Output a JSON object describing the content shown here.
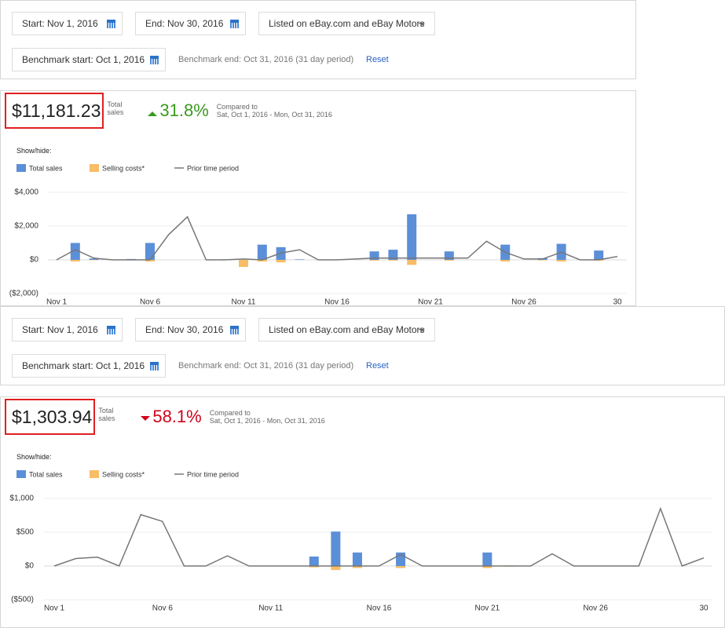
{
  "panels": [
    {
      "filters": {
        "start": "Start: Nov 1, 2016",
        "end": "End: Nov 30, 2016",
        "listing": "Listed on eBay.com and eBay Motors",
        "benchmark_start": "Benchmark start: Oct 1, 2016",
        "benchmark_end": "Benchmark end: Oct 31, 2016 (31 day period)",
        "reset": "Reset"
      },
      "summary": {
        "amount": "$11,181.23",
        "amount_label": "Total sales",
        "change": "31.8%",
        "direction": "up",
        "compared_label": "Compared to",
        "compared_range": "Sat, Oct 1, 2016 - Mon, Oct 31, 2016"
      },
      "show_hide": "Show/hide:"
    },
    {
      "filters": {
        "start": "Start: Nov 1, 2016",
        "end": "End: Nov 30, 2016",
        "listing": "Listed on eBay.com and eBay Motors",
        "benchmark_start": "Benchmark start: Oct 1, 2016",
        "benchmark_end": "Benchmark end: Oct 31, 2016 (31 day period)",
        "reset": "Reset"
      },
      "summary": {
        "amount": "$1,303.94",
        "amount_label": "Total sales",
        "change": "58.1%",
        "direction": "down",
        "compared_label": "Compared to",
        "compared_range": "Sat, Oct 1, 2016 - Mon, Oct 31, 2016"
      },
      "show_hide": "Show/hide:"
    }
  ],
  "chart_data": [
    {
      "type": "bar-line",
      "categories": [
        "Nov 1",
        null,
        null,
        null,
        null,
        "Nov 6",
        null,
        null,
        null,
        null,
        "Nov 11",
        null,
        null,
        null,
        null,
        "Nov 16",
        null,
        null,
        null,
        null,
        "Nov 21",
        null,
        null,
        null,
        null,
        "Nov 26",
        null,
        null,
        null,
        null,
        "30"
      ],
      "series": [
        {
          "name": "Total sales",
          "color": "#5b8fd8",
          "kind": "bar",
          "values": [
            0,
            1000,
            80,
            0,
            50,
            1000,
            0,
            0,
            0,
            30,
            0,
            900,
            750,
            30,
            0,
            0,
            0,
            500,
            600,
            2700,
            0,
            500,
            0,
            0,
            900,
            0,
            100,
            950,
            0,
            550,
            0
          ]
        },
        {
          "name": "Selling costs*",
          "color": "#f7bd67",
          "kind": "bar",
          "values": [
            0,
            -100,
            -20,
            0,
            0,
            -100,
            0,
            0,
            0,
            0,
            -420,
            -100,
            -150,
            0,
            0,
            0,
            0,
            -50,
            -50,
            -300,
            0,
            -50,
            0,
            0,
            -100,
            0,
            -30,
            -100,
            0,
            -50,
            0
          ]
        },
        {
          "name": "Prior time period",
          "color": "#777777",
          "kind": "line",
          "values": [
            0,
            600,
            100,
            0,
            0,
            0,
            1500,
            2550,
            0,
            0,
            50,
            0,
            400,
            600,
            0,
            0,
            50,
            100,
            100,
            100,
            100,
            100,
            100,
            1100,
            450,
            50,
            50,
            450,
            0,
            0,
            200
          ]
        }
      ],
      "ylim": [
        -2000,
        4000
      ],
      "yticks": [
        {
          "value": 4000,
          "label": "$4,000"
        },
        {
          "value": 2000,
          "label": "$2,000"
        },
        {
          "value": 0,
          "label": "$0"
        },
        {
          "value": -2000,
          "label": "($2,000)"
        }
      ],
      "grid": true
    },
    {
      "type": "bar-line",
      "categories": [
        "Nov 1",
        null,
        null,
        null,
        null,
        "Nov 6",
        null,
        null,
        null,
        null,
        "Nov 11",
        null,
        null,
        null,
        null,
        "Nov 16",
        null,
        null,
        null,
        null,
        "Nov 21",
        null,
        null,
        null,
        null,
        "Nov 26",
        null,
        null,
        null,
        null,
        "30"
      ],
      "series": [
        {
          "name": "Total sales",
          "color": "#5b8fd8",
          "kind": "bar",
          "values": [
            0,
            0,
            0,
            0,
            0,
            0,
            0,
            0,
            0,
            0,
            0,
            0,
            140,
            510,
            200,
            0,
            200,
            0,
            0,
            0,
            200,
            0,
            0,
            0,
            0,
            0,
            0,
            0,
            0,
            0,
            0
          ]
        },
        {
          "name": "Selling costs*",
          "color": "#f7bd67",
          "kind": "bar",
          "values": [
            0,
            0,
            0,
            0,
            0,
            0,
            0,
            0,
            0,
            0,
            0,
            0,
            -20,
            -60,
            -30,
            0,
            -30,
            0,
            0,
            0,
            -30,
            -10,
            0,
            0,
            0,
            0,
            0,
            0,
            0,
            0,
            0
          ]
        },
        {
          "name": "Prior time period",
          "color": "#777777",
          "kind": "line",
          "values": [
            0,
            110,
            130,
            0,
            760,
            660,
            0,
            0,
            150,
            0,
            0,
            0,
            0,
            0,
            0,
            0,
            170,
            0,
            0,
            0,
            0,
            0,
            0,
            180,
            0,
            0,
            0,
            0,
            850,
            0,
            120
          ]
        }
      ],
      "ylim": [
        -500,
        1000
      ],
      "yticks": [
        {
          "value": 1000,
          "label": "$1,000"
        },
        {
          "value": 500,
          "label": "$500"
        },
        {
          "value": 0,
          "label": "$0"
        },
        {
          "value": -500,
          "label": "($500)"
        }
      ],
      "grid": true
    }
  ]
}
